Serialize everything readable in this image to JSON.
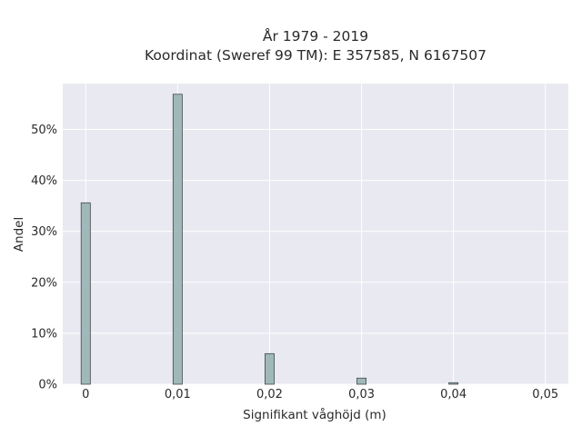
{
  "chart_data": {
    "type": "bar",
    "title_lines": [
      "År 1979 - 2019",
      "Koordinat (Sweref 99 TM): E 357585, N 6167507"
    ],
    "xlabel": "Signifikant våghöjd (m)",
    "ylabel": "Andel",
    "x_ticks": [
      "0",
      "0,01",
      "0,02",
      "0,03",
      "0,04",
      "0,05"
    ],
    "y_ticks": [
      "0%",
      "10%",
      "20%",
      "30%",
      "40%",
      "50%"
    ],
    "xlim": [
      -0.0025,
      0.0525
    ],
    "ylim": [
      0,
      59
    ],
    "x": [
      0,
      0.01,
      0.02,
      0.03,
      0.04
    ],
    "values": [
      35.6,
      56.9,
      6.0,
      1.2,
      0.3
    ],
    "bar_width": 0.001,
    "grid": true,
    "colors": {
      "plot_bg": "#e9e9f1",
      "bar_fill": "#a0b8b9",
      "bar_stroke": "#3f4a4a",
      "grid": "#ffffff"
    }
  }
}
